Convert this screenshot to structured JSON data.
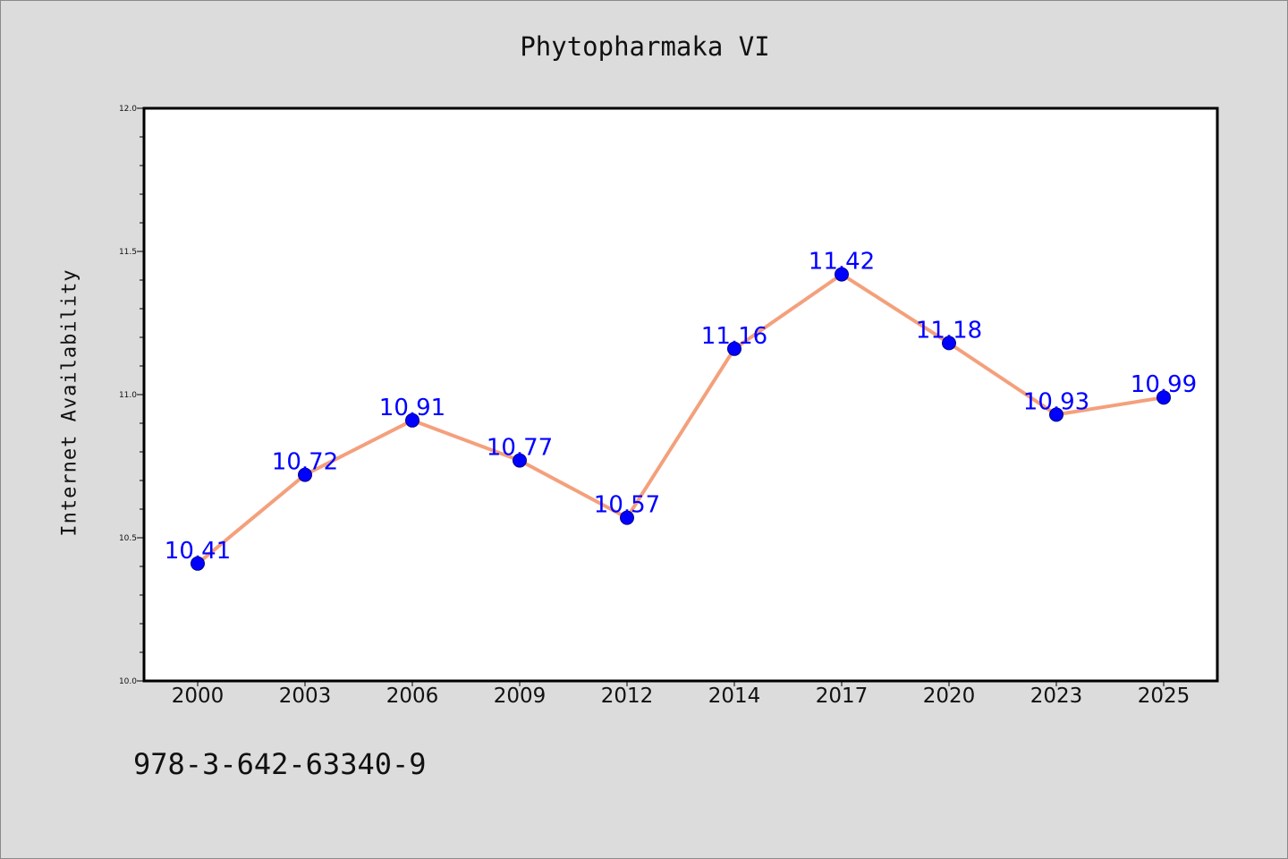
{
  "chart_data": {
    "type": "line",
    "title": "Phytopharmaka VI",
    "xlabel": "",
    "ylabel": "Internet Availability",
    "categories": [
      "2000",
      "2003",
      "2006",
      "2009",
      "2012",
      "2014",
      "2017",
      "2020",
      "2023",
      "2025"
    ],
    "series": [
      {
        "values": [
          10.41,
          10.72,
          10.91,
          10.77,
          10.57,
          11.16,
          11.42,
          11.18,
          10.93,
          10.99
        ],
        "line_color": "#f4a07c",
        "marker_color": "#0000ff"
      }
    ],
    "data_labels": [
      "10.41",
      "10.72",
      "10.91",
      "10.77",
      "10.57",
      "11.16",
      "11.42",
      "11.18",
      "10.93",
      "10.99"
    ],
    "ylim": [
      10.0,
      12.0
    ],
    "yticks": [
      "10.0",
      "10.5",
      "11.0",
      "11.5",
      "12.0"
    ],
    "grid": false,
    "legend": "none"
  },
  "footer": {
    "isbn": "978-3-642-63340-9"
  }
}
